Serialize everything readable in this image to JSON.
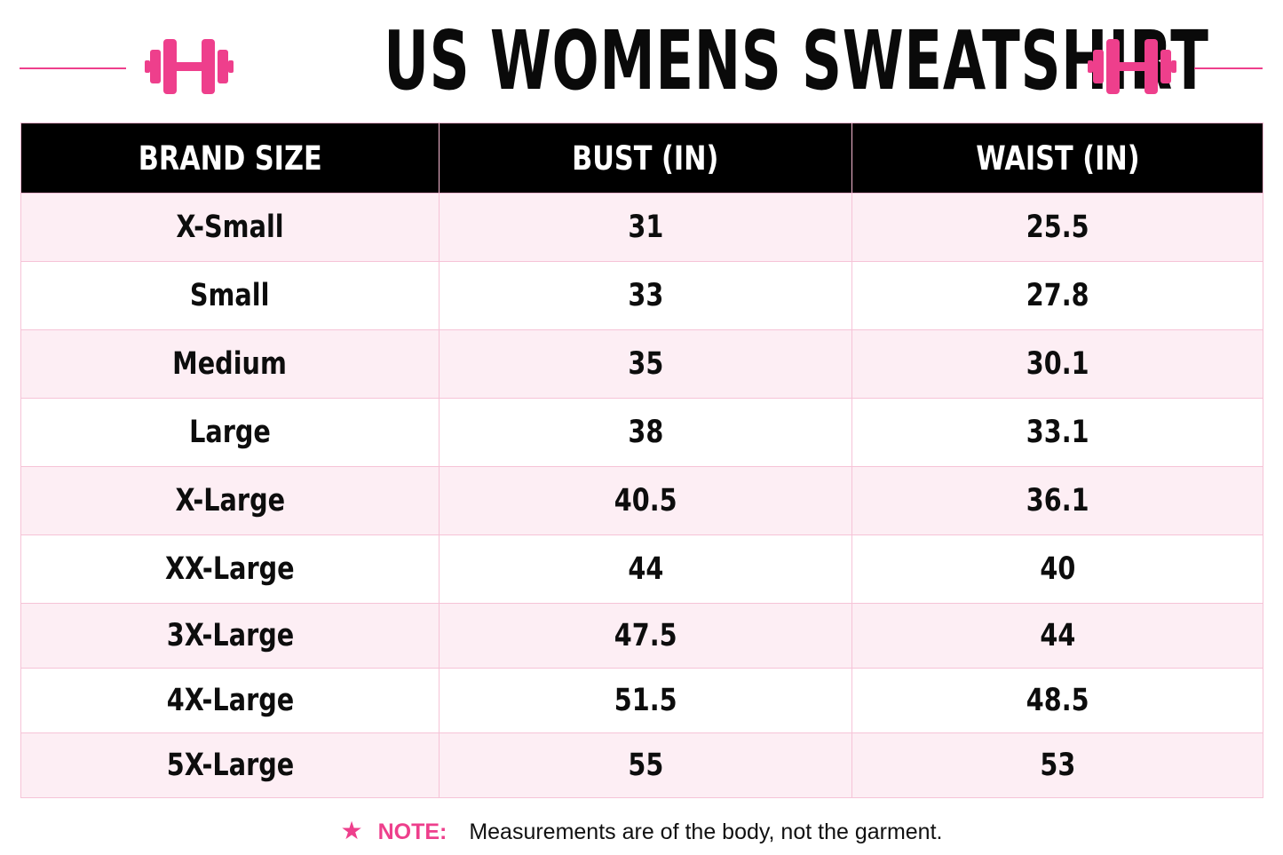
{
  "page": {
    "title": "US WOMENS SWEATSHIRT",
    "accent_color": "#ee3f8c",
    "header_bg_color": "#000000",
    "row_tint_color": "#fdeef4",
    "border_color": "#f6c3d7",
    "decor_icons": [
      "dumbbell-icon",
      "dumbbell-icon"
    ]
  },
  "table": {
    "headers": [
      "BRAND SIZE",
      "BUST (IN)",
      "WAIST (IN)"
    ],
    "rows": [
      [
        "X-Small",
        "31",
        "25.5"
      ],
      [
        "Small",
        "33",
        "27.8"
      ],
      [
        "Medium",
        "35",
        "30.1"
      ],
      [
        "Large",
        "38",
        "33.1"
      ],
      [
        "X-Large",
        "40.5",
        "36.1"
      ],
      [
        "XX-Large",
        "44",
        "40"
      ],
      [
        "3X-Large",
        "47.5",
        "44"
      ],
      [
        "4X-Large",
        "51.5",
        "48.5"
      ],
      [
        "5X-Large",
        "55",
        "53"
      ]
    ]
  },
  "note": {
    "icon": "star-icon",
    "label": "NOTE:",
    "text": "Measurements are of the body, not the garment."
  }
}
